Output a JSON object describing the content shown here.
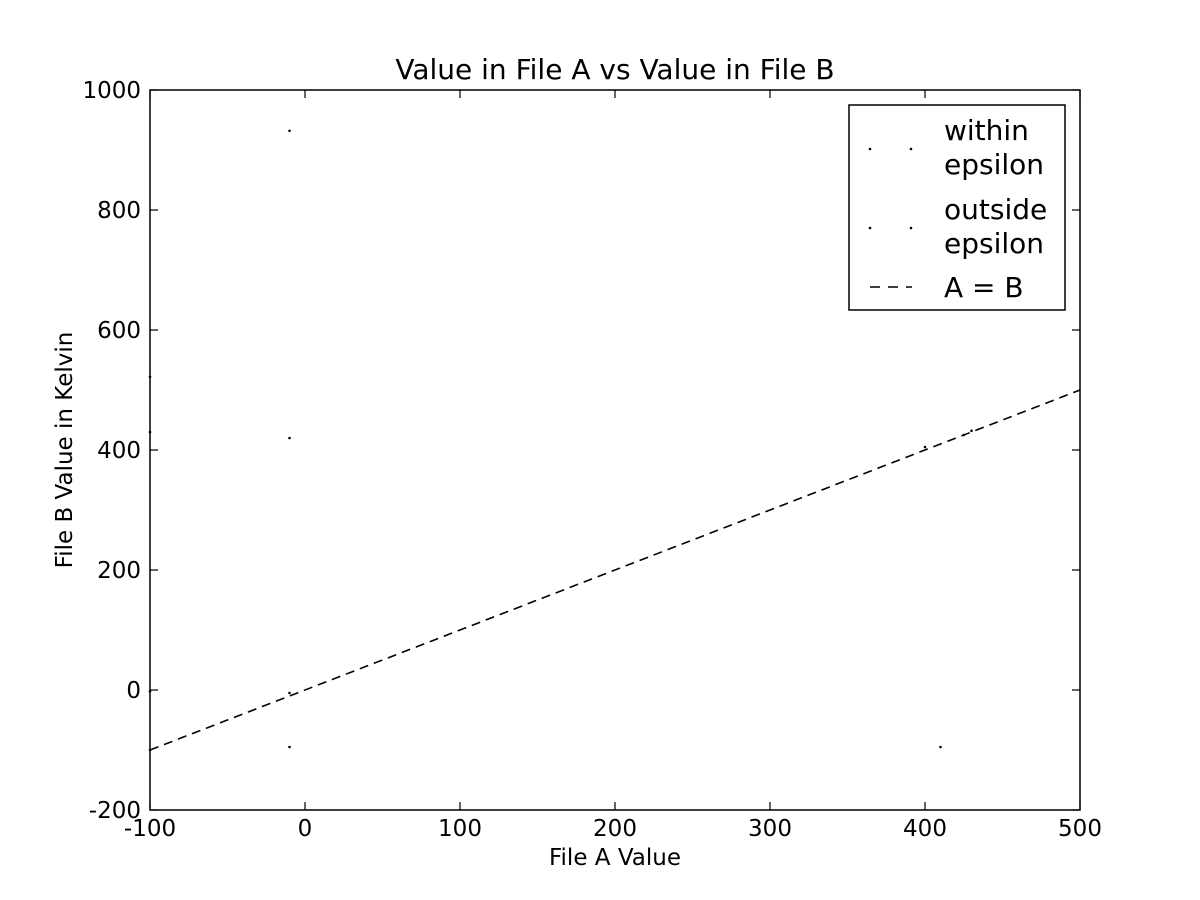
{
  "chart_data": {
    "type": "scatter",
    "title": "Value in File A vs Value in File B",
    "xlabel": "File A Value",
    "ylabel": "File B Value in Kelvin",
    "xlim": [
      -100,
      500
    ],
    "ylim": [
      -200,
      1000
    ],
    "x_ticks": [
      -100,
      0,
      100,
      200,
      300,
      400,
      500
    ],
    "y_ticks": [
      -200,
      0,
      200,
      400,
      600,
      800,
      1000
    ],
    "x_tick_labels": [
      "-100",
      "0",
      "100",
      "200",
      "300",
      "400",
      "500"
    ],
    "y_tick_labels": [
      "-200",
      "0",
      "200",
      "400",
      "600",
      "800",
      "1000"
    ],
    "grid": false,
    "legend_position": "upper-right",
    "legend": [
      {
        "label": "within epsilon",
        "lines": [
          "within",
          "epsilon"
        ],
        "marker": "dot",
        "color": "#000000"
      },
      {
        "label": "outside epsilon",
        "lines": [
          "outside",
          "epsilon"
        ],
        "marker": "dot",
        "color": "#000000"
      },
      {
        "label": "A = B",
        "lines": [
          "A = B"
        ],
        "marker": "dashed-line",
        "color": "#000000"
      }
    ],
    "series": [
      {
        "name": "within epsilon",
        "color": "#000000",
        "points": [
          [
            -100,
            -100
          ],
          [
            -100,
            -2
          ],
          [
            -10,
            -95
          ],
          [
            -10,
            -5
          ],
          [
            400,
            405
          ],
          [
            425,
            425
          ],
          [
            430,
            432
          ],
          [
            410,
            -95
          ]
        ]
      },
      {
        "name": "outside epsilon",
        "color": "#000000",
        "points": [
          [
            -100,
            522
          ],
          [
            -100,
            430
          ],
          [
            -10,
            932
          ],
          [
            -10,
            420
          ]
        ]
      },
      {
        "name": "A = B",
        "color": "#000000",
        "style": "dashed",
        "points": [
          [
            -100,
            -100
          ],
          [
            500,
            500
          ]
        ]
      }
    ]
  }
}
